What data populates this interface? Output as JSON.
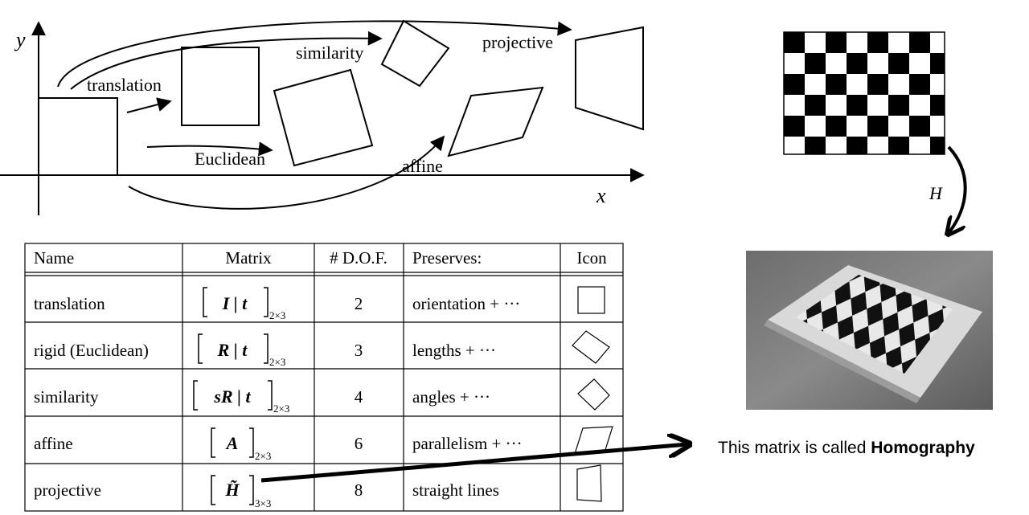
{
  "diagram": {
    "axis_y": "y",
    "axis_x": "x",
    "labels": {
      "translation": "translation",
      "euclidean": "Euclidean",
      "similarity": "similarity",
      "affine": "affine",
      "projective": "projective"
    }
  },
  "table": {
    "headers": [
      "Name",
      "Matrix",
      "# D.O.F.",
      "Preserves:",
      "Icon"
    ],
    "rows": [
      {
        "name": "translation",
        "matrix": "I | t",
        "sub": "2×3",
        "dof": "2",
        "preserves": "orientation + ···",
        "icon": "square-icon"
      },
      {
        "name": "rigid (Euclidean)",
        "matrix": "R | t",
        "sub": "2×3",
        "dof": "3",
        "preserves": "lengths + ···",
        "icon": "rotated-square-icon"
      },
      {
        "name": "similarity",
        "matrix": "sR | t",
        "sub": "2×3",
        "dof": "4",
        "preserves": "angles + ···",
        "icon": "small-diamond-icon"
      },
      {
        "name": "affine",
        "matrix": "A",
        "sub": "2×3",
        "dof": "6",
        "preserves": "parallelism + ···",
        "icon": "parallelogram-icon"
      },
      {
        "name": "projective",
        "matrix": "H̃",
        "sub": "3×3",
        "dof": "8",
        "preserves": "straight lines",
        "icon": "trapezoid-icon"
      }
    ]
  },
  "right": {
    "h_label": "H",
    "caption_prefix": "This matrix is called ",
    "caption_bold": "Homography"
  }
}
